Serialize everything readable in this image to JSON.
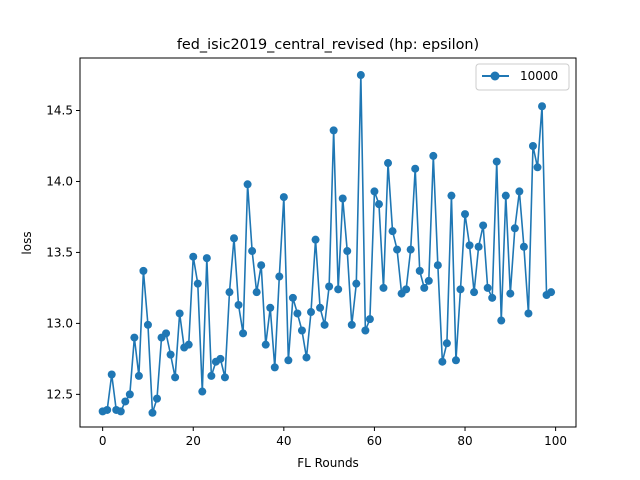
{
  "chart_data": {
    "type": "line",
    "title": "fed_isic2019_central_revised (hp: epsilon)",
    "xlabel": "FL Rounds",
    "ylabel": "loss",
    "xlim": [
      -5,
      104.5
    ],
    "ylim": [
      12.27,
      14.87
    ],
    "xticks": [
      0,
      20,
      40,
      60,
      80,
      100
    ],
    "yticks": [
      12.5,
      13.0,
      13.5,
      14.0,
      14.5
    ],
    "ytick_labels": [
      "12.5",
      "13.0",
      "13.5",
      "14.0",
      "14.5"
    ],
    "legend_position": "top-right",
    "color": "#1f77b4",
    "series": [
      {
        "name": "10000",
        "x": [
          0,
          1,
          2,
          3,
          4,
          5,
          6,
          7,
          8,
          9,
          10,
          11,
          12,
          13,
          14,
          15,
          16,
          17,
          18,
          19,
          20,
          21,
          22,
          23,
          24,
          25,
          26,
          27,
          28,
          29,
          30,
          31,
          32,
          33,
          34,
          35,
          36,
          37,
          38,
          39,
          40,
          41,
          42,
          43,
          44,
          45,
          46,
          47,
          48,
          49,
          50,
          51,
          52,
          53,
          54,
          55,
          56,
          57,
          58,
          59,
          60,
          61,
          62,
          63,
          64,
          65,
          66,
          67,
          68,
          69,
          70,
          71,
          72,
          73,
          74,
          75,
          76,
          77,
          78,
          79,
          80,
          81,
          82,
          83,
          84,
          85,
          86,
          87,
          88,
          89,
          90,
          91,
          92,
          93,
          94,
          95,
          96,
          97,
          98,
          99
        ],
        "values": [
          12.38,
          12.39,
          12.64,
          12.39,
          12.38,
          12.45,
          12.5,
          12.9,
          12.63,
          13.37,
          12.99,
          12.37,
          12.47,
          12.9,
          12.93,
          12.78,
          12.62,
          13.07,
          12.83,
          12.85,
          13.47,
          13.28,
          12.52,
          13.46,
          12.63,
          12.73,
          12.75,
          12.62,
          13.22,
          13.6,
          13.13,
          12.93,
          13.98,
          13.51,
          13.22,
          13.41,
          12.85,
          13.11,
          12.69,
          13.33,
          13.89,
          12.74,
          13.18,
          13.07,
          12.95,
          12.76,
          13.08,
          13.59,
          13.11,
          12.99,
          13.26,
          14.36,
          13.24,
          13.88,
          13.51,
          12.99,
          13.28,
          14.75,
          12.95,
          13.03,
          13.93,
          13.84,
          13.25,
          14.13,
          13.65,
          13.52,
          13.21,
          13.24,
          13.52,
          14.09,
          13.37,
          13.25,
          13.3,
          14.18,
          13.41,
          12.73,
          12.86,
          13.9,
          12.74,
          13.24,
          13.77,
          13.55,
          13.22,
          13.54,
          13.69,
          13.25,
          13.18,
          14.14,
          13.02,
          13.9,
          13.21,
          13.67,
          13.93,
          13.54,
          13.07,
          14.25,
          14.1,
          14.53,
          13.2,
          13.22
        ]
      }
    ]
  }
}
